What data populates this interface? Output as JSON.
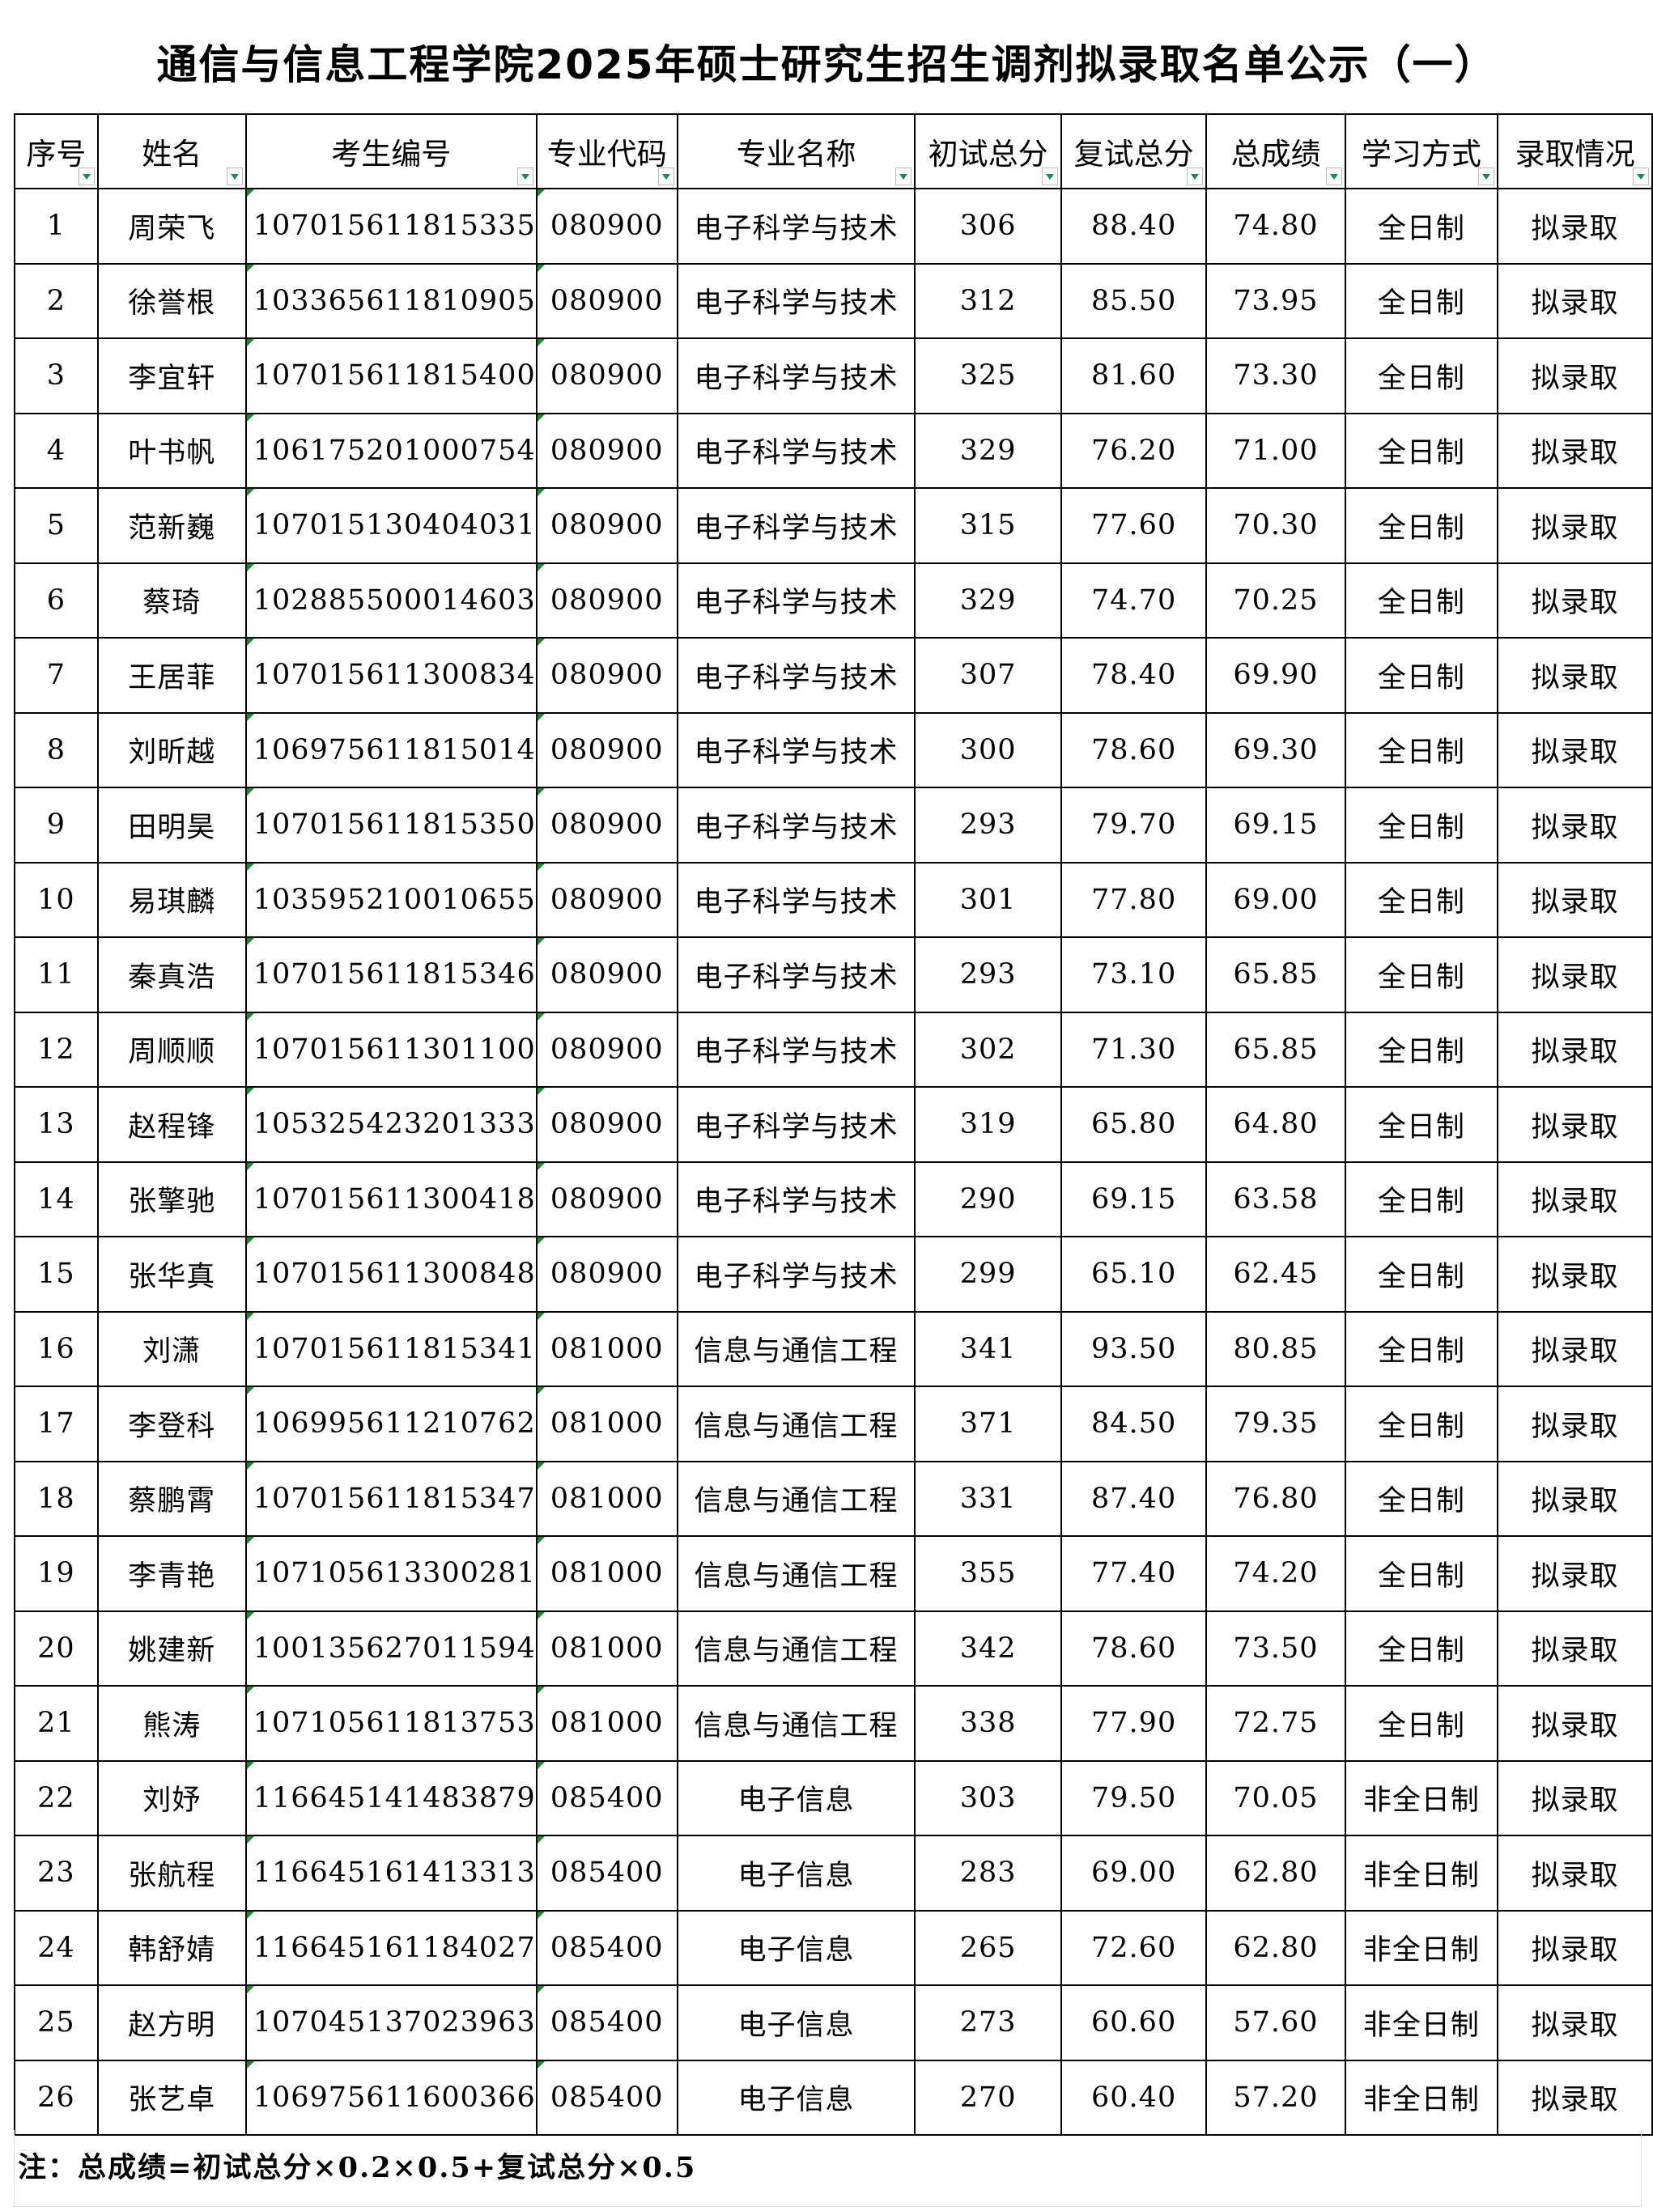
{
  "title": "通信与信息工程学院2025年硕士研究生招生调剂拟录取名单公示（一）",
  "columns": [
    "序号",
    "姓名",
    "考生编号",
    "专业代码",
    "专业名称",
    "初试总分",
    "复试总分",
    "总成绩",
    "学习方式",
    "录取情况"
  ],
  "rows": [
    [
      "1",
      "周荣飞",
      "107015611815335",
      "080900",
      "电子科学与技术",
      "306",
      "88.40",
      "74.80",
      "全日制",
      "拟录取"
    ],
    [
      "2",
      "徐誉根",
      "103365611810905",
      "080900",
      "电子科学与技术",
      "312",
      "85.50",
      "73.95",
      "全日制",
      "拟录取"
    ],
    [
      "3",
      "李宜轩",
      "107015611815400",
      "080900",
      "电子科学与技术",
      "325",
      "81.60",
      "73.30",
      "全日制",
      "拟录取"
    ],
    [
      "4",
      "叶书帆",
      "106175201000754",
      "080900",
      "电子科学与技术",
      "329",
      "76.20",
      "71.00",
      "全日制",
      "拟录取"
    ],
    [
      "5",
      "范新巍",
      "107015130404031",
      "080900",
      "电子科学与技术",
      "315",
      "77.60",
      "70.30",
      "全日制",
      "拟录取"
    ],
    [
      "6",
      "蔡琦",
      "102885500014603",
      "080900",
      "电子科学与技术",
      "329",
      "74.70",
      "70.25",
      "全日制",
      "拟录取"
    ],
    [
      "7",
      "王居菲",
      "107015611300834",
      "080900",
      "电子科学与技术",
      "307",
      "78.40",
      "69.90",
      "全日制",
      "拟录取"
    ],
    [
      "8",
      "刘昕越",
      "106975611815014",
      "080900",
      "电子科学与技术",
      "300",
      "78.60",
      "69.30",
      "全日制",
      "拟录取"
    ],
    [
      "9",
      "田明昊",
      "107015611815350",
      "080900",
      "电子科学与技术",
      "293",
      "79.70",
      "69.15",
      "全日制",
      "拟录取"
    ],
    [
      "10",
      "易琪麟",
      "103595210010655",
      "080900",
      "电子科学与技术",
      "301",
      "77.80",
      "69.00",
      "全日制",
      "拟录取"
    ],
    [
      "11",
      "秦真浩",
      "107015611815346",
      "080900",
      "电子科学与技术",
      "293",
      "73.10",
      "65.85",
      "全日制",
      "拟录取"
    ],
    [
      "12",
      "周顺顺",
      "107015611301100",
      "080900",
      "电子科学与技术",
      "302",
      "71.30",
      "65.85",
      "全日制",
      "拟录取"
    ],
    [
      "13",
      "赵程锋",
      "105325423201333",
      "080900",
      "电子科学与技术",
      "319",
      "65.80",
      "64.80",
      "全日制",
      "拟录取"
    ],
    [
      "14",
      "张擎驰",
      "107015611300418",
      "080900",
      "电子科学与技术",
      "290",
      "69.15",
      "63.58",
      "全日制",
      "拟录取"
    ],
    [
      "15",
      "张华真",
      "107015611300848",
      "080900",
      "电子科学与技术",
      "299",
      "65.10",
      "62.45",
      "全日制",
      "拟录取"
    ],
    [
      "16",
      "刘潇",
      "107015611815341",
      "081000",
      "信息与通信工程",
      "341",
      "93.50",
      "80.85",
      "全日制",
      "拟录取"
    ],
    [
      "17",
      "李登科",
      "106995611210762",
      "081000",
      "信息与通信工程",
      "371",
      "84.50",
      "79.35",
      "全日制",
      "拟录取"
    ],
    [
      "18",
      "蔡鹏霄",
      "107015611815347",
      "081000",
      "信息与通信工程",
      "331",
      "87.40",
      "76.80",
      "全日制",
      "拟录取"
    ],
    [
      "19",
      "李青艳",
      "107105613300281",
      "081000",
      "信息与通信工程",
      "355",
      "77.40",
      "74.20",
      "全日制",
      "拟录取"
    ],
    [
      "20",
      "姚建新",
      "100135627011594",
      "081000",
      "信息与通信工程",
      "342",
      "78.60",
      "73.50",
      "全日制",
      "拟录取"
    ],
    [
      "21",
      "熊涛",
      "107105611813753",
      "081000",
      "信息与通信工程",
      "338",
      "77.90",
      "72.75",
      "全日制",
      "拟录取"
    ],
    [
      "22",
      "刘妤",
      "116645141483879",
      "085400",
      "电子信息",
      "303",
      "79.50",
      "70.05",
      "非全日制",
      "拟录取"
    ],
    [
      "23",
      "张航程",
      "116645161413313",
      "085400",
      "电子信息",
      "283",
      "69.00",
      "62.80",
      "非全日制",
      "拟录取"
    ],
    [
      "24",
      "韩舒婧",
      "116645161184027",
      "085400",
      "电子信息",
      "265",
      "72.60",
      "62.80",
      "非全日制",
      "拟录取"
    ],
    [
      "25",
      "赵方明",
      "107045137023963",
      "085400",
      "电子信息",
      "273",
      "60.60",
      "57.60",
      "非全日制",
      "拟录取"
    ],
    [
      "26",
      "张艺卓",
      "106975611600366",
      "085400",
      "电子信息",
      "270",
      "60.40",
      "57.20",
      "非全日制",
      "拟录取"
    ]
  ],
  "note": "注：总成绩=初试总分×0.2×0.5+复试总分×0.5",
  "colors": {
    "filter_arrow": "#1a8a5a",
    "text_flag": "#1a8a2a"
  }
}
